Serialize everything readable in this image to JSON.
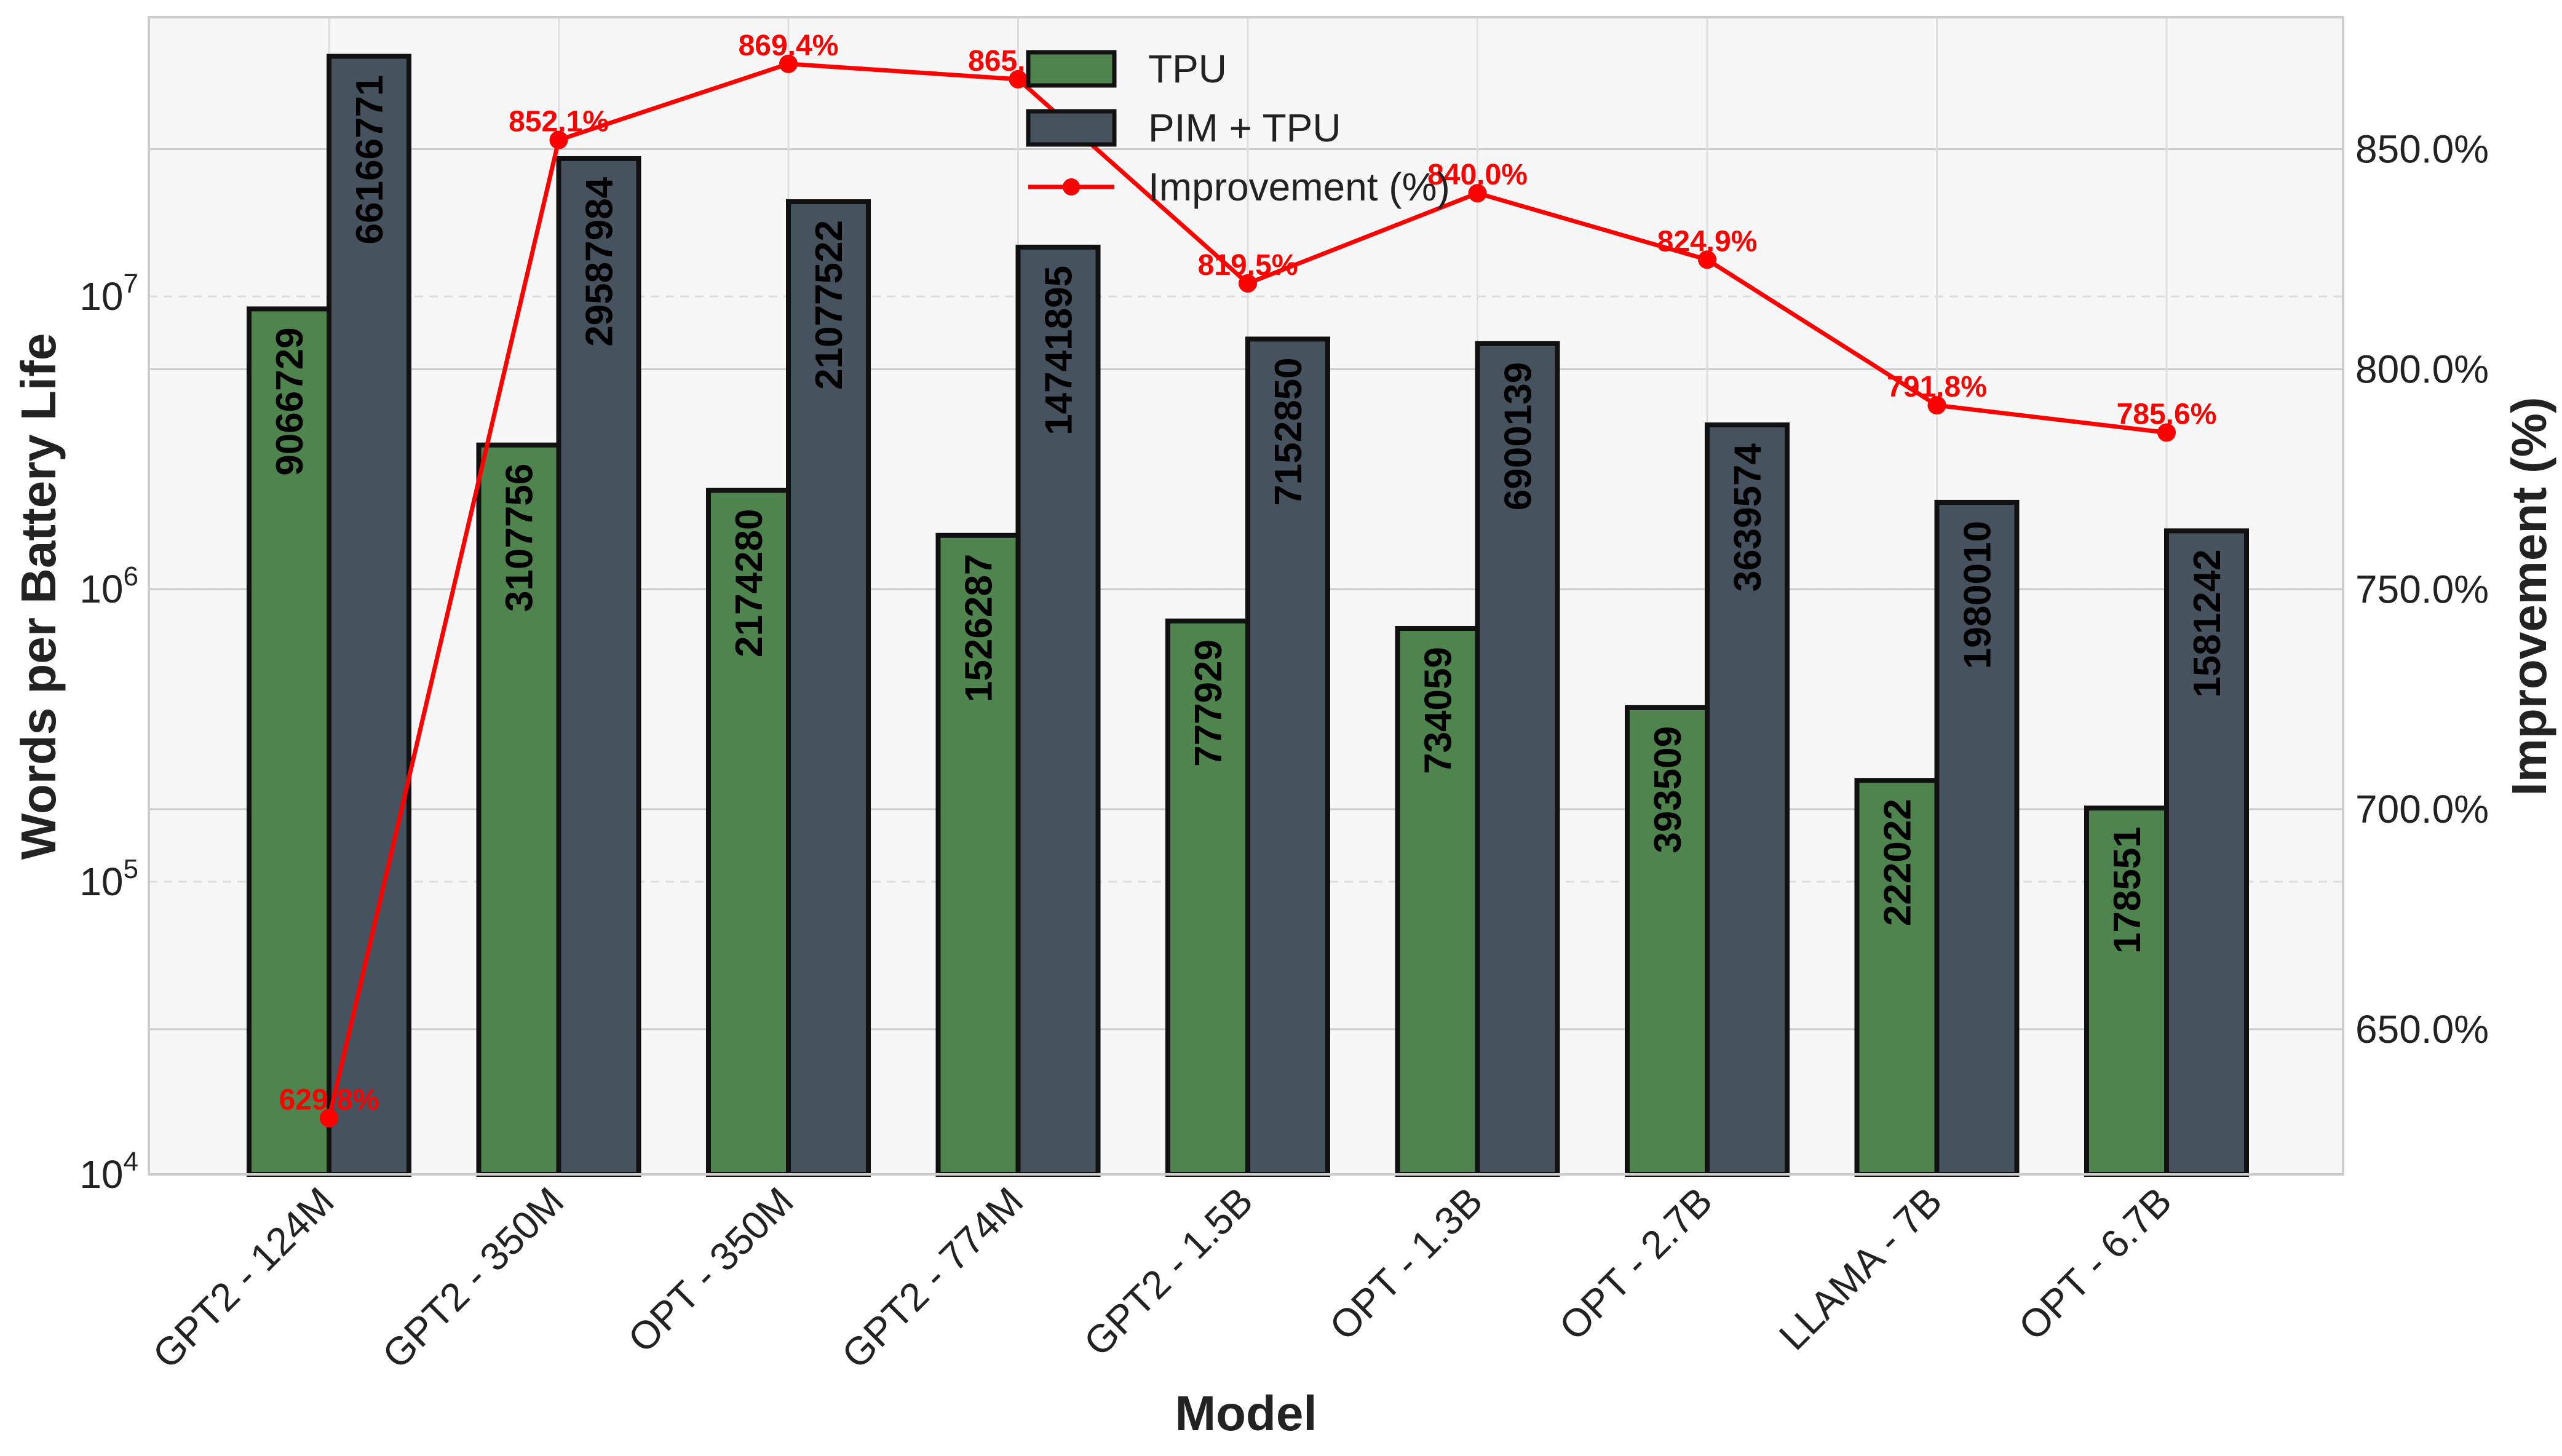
{
  "chart_data": {
    "type": "bar",
    "title": "",
    "xlabel": "Model",
    "ylabel": "Words per Battery Life",
    "y2label": "Improvement (%)",
    "yscale": "log",
    "ylim": [
      10000,
      90000000
    ],
    "y2lim": [
      617,
      880
    ],
    "y_ticks": [
      {
        "value": 10000,
        "base": "10",
        "exp": "4"
      },
      {
        "value": 100000,
        "base": "10",
        "exp": "5"
      },
      {
        "value": 1000000,
        "base": "10",
        "exp": "6"
      },
      {
        "value": 10000000,
        "base": "10",
        "exp": "7"
      }
    ],
    "y2_ticks": [
      {
        "value": 650,
        "label": "650.0%"
      },
      {
        "value": 700,
        "label": "700.0%"
      },
      {
        "value": 750,
        "label": "750.0%"
      },
      {
        "value": 800,
        "label": "800.0%"
      },
      {
        "value": 850,
        "label": "850.0%"
      }
    ],
    "categories": [
      "GPT2 - 124M",
      "GPT2 - 350M",
      "OPT - 350M",
      "GPT2 - 774M",
      "GPT2 - 1.5B",
      "OPT - 1.3B",
      "OPT - 2.7B",
      "LLAMA - 7B",
      "OPT - 6.7B"
    ],
    "series": [
      {
        "name": "TPU",
        "kind": "bar",
        "color": "#4f844f",
        "values": [
          9066729,
          3107756,
          2174280,
          1526287,
          777929,
          734059,
          393509,
          222022,
          178551
        ]
      },
      {
        "name": "PIM + TPU",
        "kind": "bar",
        "color": "#46535f",
        "values": [
          66166771,
          29587984,
          21077522,
          14741895,
          7152850,
          6900139,
          3639574,
          1980010,
          1581242
        ]
      },
      {
        "name": "Improvement (%)",
        "kind": "line",
        "axis": "right",
        "color": "#ff0000",
        "values": [
          629.8,
          852.1,
          869.4,
          865.9,
          819.5,
          840.0,
          824.9,
          791.8,
          785.6
        ],
        "labels": [
          "629.8%",
          "852.1%",
          "869.4%",
          "865.9%",
          "819.5%",
          "840.0%",
          "824.9%",
          "791.8%",
          "785.6%"
        ]
      }
    ],
    "legend": {
      "position": "top-center",
      "entries": [
        "TPU",
        "PIM + TPU",
        "Improvement (%)"
      ]
    },
    "grid": true
  }
}
